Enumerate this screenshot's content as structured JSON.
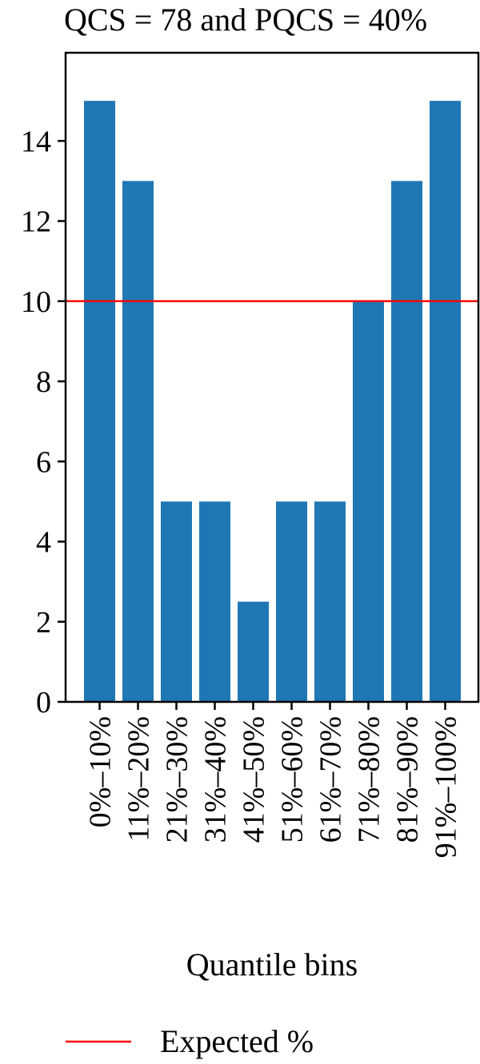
{
  "chart_data": {
    "type": "bar",
    "title": "QCS = 78 and PQCS = 40%",
    "xlabel": "Quantile bins",
    "ylabel": "",
    "categories": [
      "0%–10%",
      "11%–20%",
      "21%–30%",
      "31%–40%",
      "41%–50%",
      "51%–60%",
      "61%–70%",
      "71%–80%",
      "81%–90%",
      "91%–100%"
    ],
    "values": [
      15,
      13,
      5,
      5,
      2.5,
      5,
      5,
      10,
      13,
      15
    ],
    "ylim": [
      0,
      16.2
    ],
    "yticks": [
      0,
      2,
      4,
      6,
      8,
      10,
      12,
      14
    ],
    "grid": false,
    "bar_color": "#1f77b4",
    "reference_line": {
      "value": 10,
      "label": "Expected %",
      "color": "#ff0000"
    },
    "legend_placement": "bottom-center"
  }
}
